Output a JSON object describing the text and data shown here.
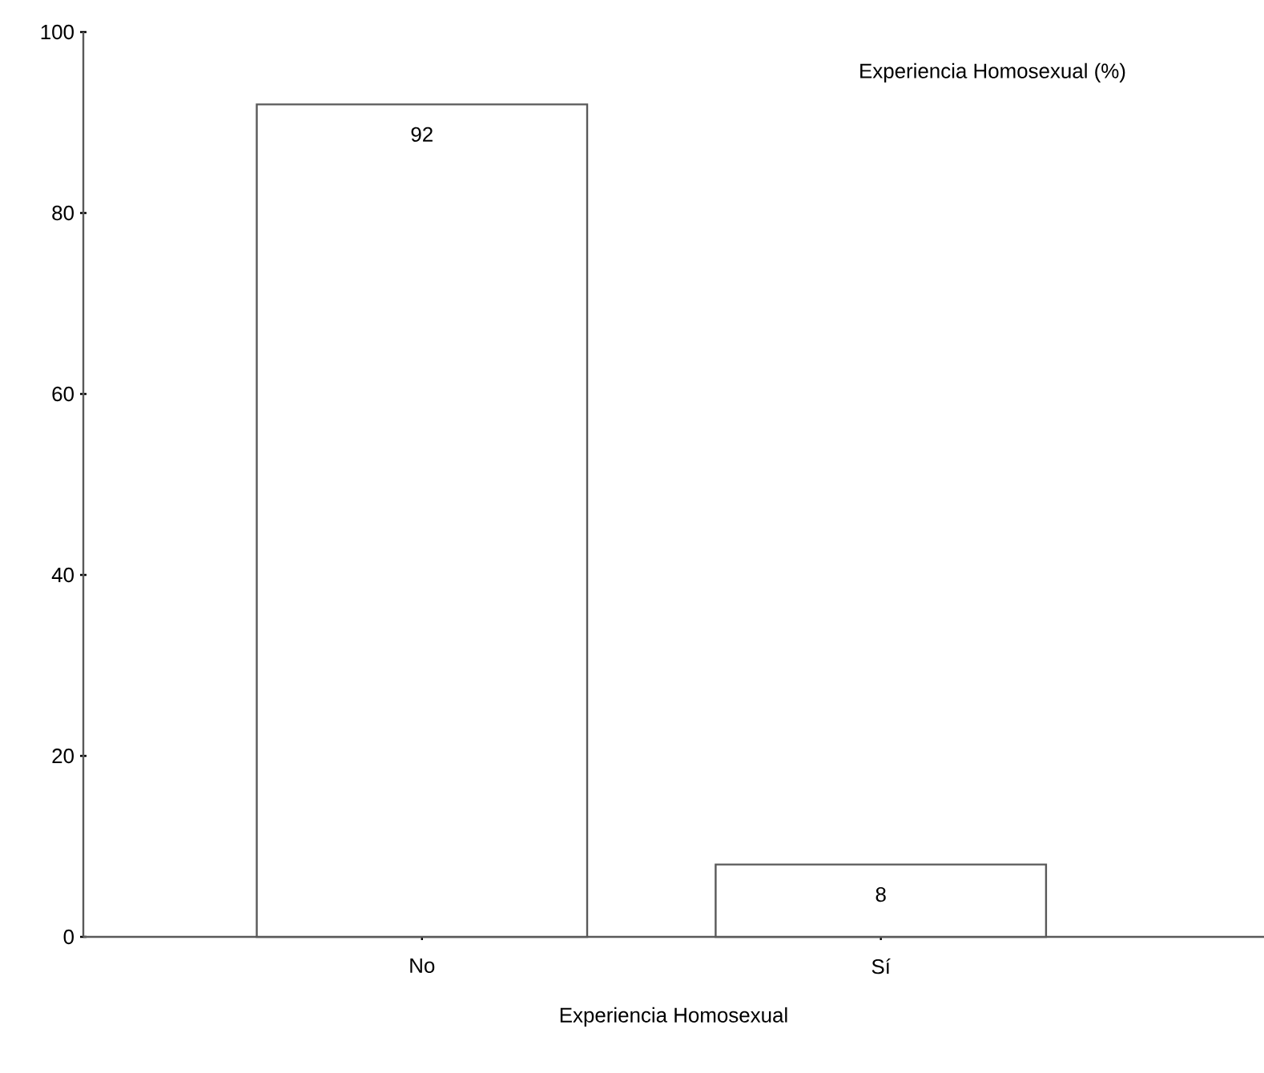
{
  "chart_data": {
    "type": "bar",
    "title": "Experiencia Homosexual (%)",
    "xlabel": "Experiencia Homosexual",
    "categories": [
      "No",
      "Sí"
    ],
    "values": [
      92,
      8
    ],
    "color": "#ffffff",
    "ylim": [
      0,
      100
    ],
    "yticks": [
      0,
      20,
      40,
      60,
      80,
      100
    ],
    "data_labels": true,
    "grid": false
  }
}
